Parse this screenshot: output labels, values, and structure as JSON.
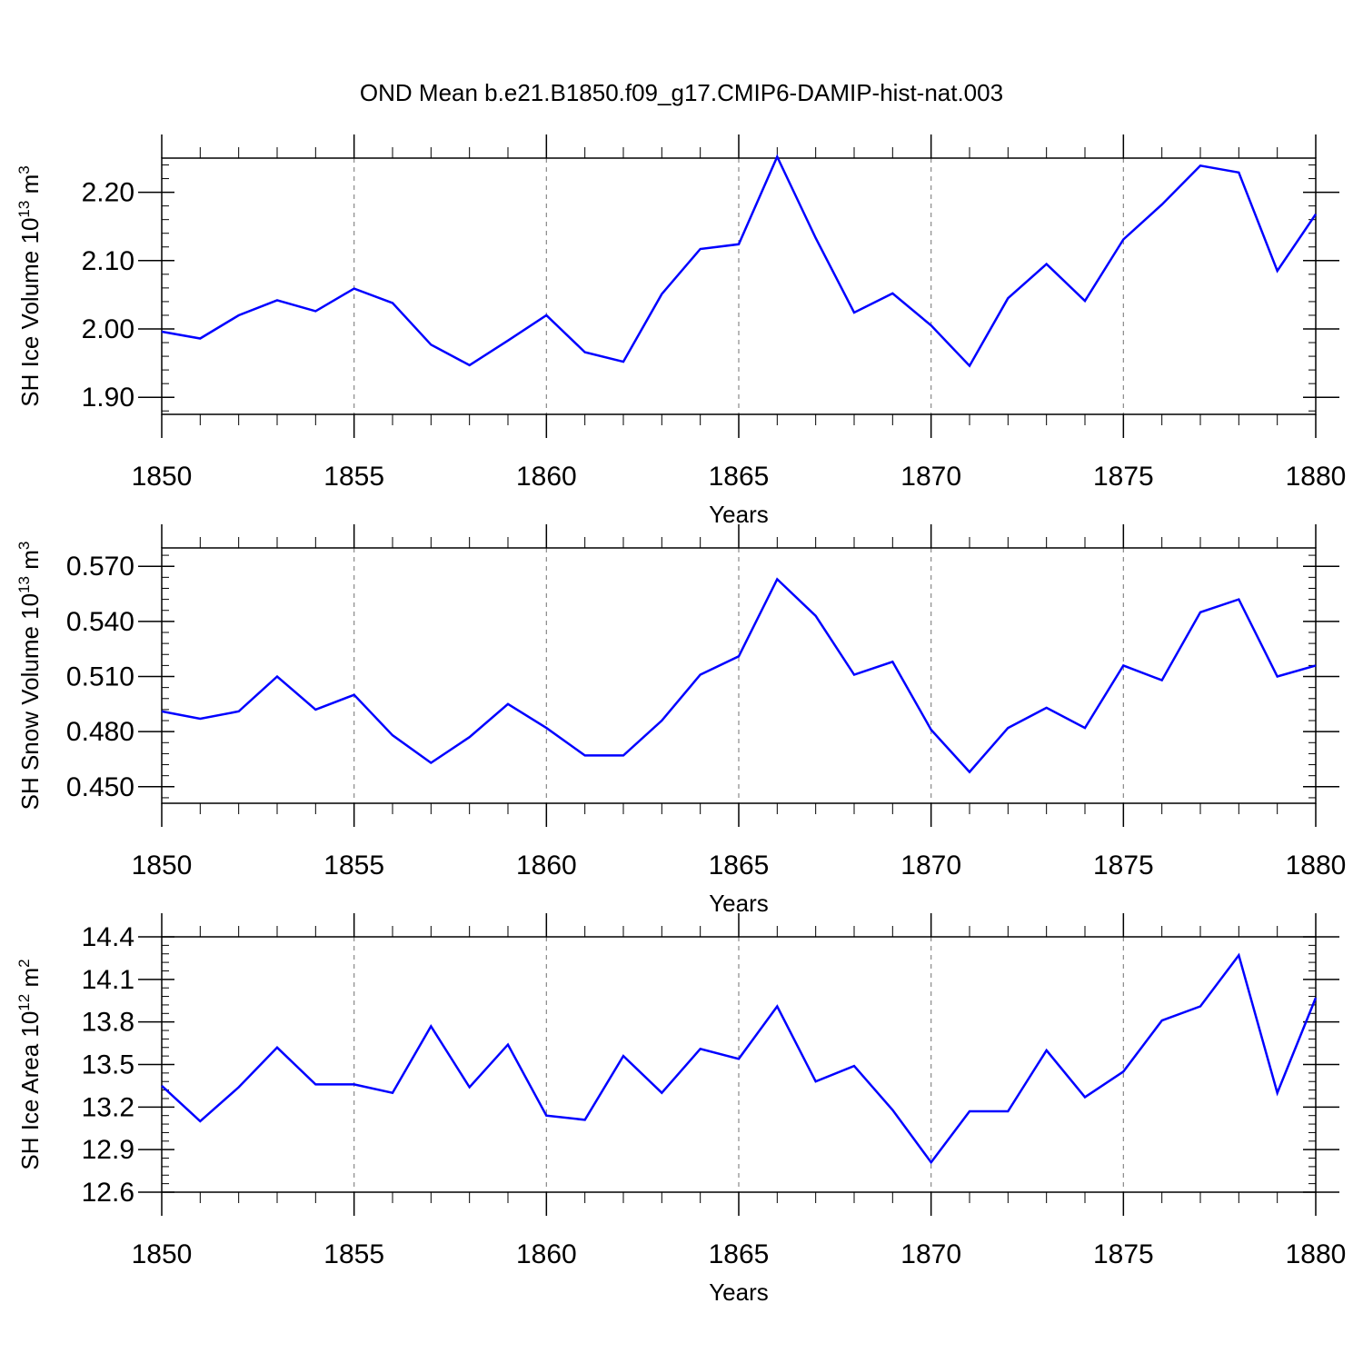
{
  "title": "OND Mean b.e21.B1850.f09_g17.CMIP6-DAMIP-hist-nat.003",
  "colors": {
    "line": "#0000ff",
    "axis": "#000000",
    "grid": "#888888",
    "background": "#ffffff"
  },
  "chart_data": [
    {
      "type": "line",
      "ylabel": {
        "base": "SH Ice Volume 10",
        "exp": "13",
        "unit": " m",
        "unit_exp": "3"
      },
      "xlabel": "Years",
      "xlim": [
        1850,
        1880
      ],
      "ylim": [
        1.875,
        2.25
      ],
      "y_ticks": [
        1.9,
        2.0,
        2.1,
        2.2
      ],
      "y_tick_labels": [
        "1.90",
        "2.00",
        "2.10",
        "2.20"
      ],
      "y_minor_step": 0.02,
      "x_ticks": [
        1850,
        1855,
        1860,
        1865,
        1870,
        1875,
        1880
      ],
      "x_tick_labels": [
        "1850",
        "1855",
        "1860",
        "1865",
        "1870",
        "1875",
        "1880"
      ],
      "grid": "vertical dashed at major x ticks",
      "series": [
        {
          "x": [
            1850,
            1851,
            1852,
            1853,
            1854,
            1855,
            1856,
            1857,
            1858,
            1859,
            1860,
            1861,
            1862,
            1863,
            1864,
            1865,
            1866,
            1867,
            1868,
            1869,
            1870,
            1871,
            1872,
            1873,
            1874,
            1875,
            1876,
            1877,
            1878,
            1879,
            1880
          ],
          "values": [
            1.996,
            1.986,
            2.02,
            2.042,
            2.026,
            2.059,
            2.038,
            1.977,
            1.947,
            1.983,
            2.02,
            1.966,
            1.952,
            2.051,
            2.117,
            2.124,
            2.252,
            2.133,
            2.024,
            2.052,
            2.005,
            1.946,
            2.045,
            2.095,
            2.041,
            2.131,
            2.182,
            2.239,
            2.229,
            2.085,
            2.168
          ]
        }
      ]
    },
    {
      "type": "line",
      "ylabel": {
        "base": "SH Snow Volume 10",
        "exp": "13",
        "unit": " m",
        "unit_exp": "3"
      },
      "xlabel": "Years",
      "xlim": [
        1850,
        1880
      ],
      "ylim": [
        0.441,
        0.58
      ],
      "y_ticks": [
        0.45,
        0.48,
        0.51,
        0.54,
        0.57
      ],
      "y_tick_labels": [
        "0.450",
        "0.480",
        "0.510",
        "0.540",
        "0.570"
      ],
      "y_minor_step": 0.006,
      "x_ticks": [
        1850,
        1855,
        1860,
        1865,
        1870,
        1875,
        1880
      ],
      "x_tick_labels": [
        "1850",
        "1855",
        "1860",
        "1865",
        "1870",
        "1875",
        "1880"
      ],
      "grid": "vertical dashed at major x ticks",
      "series": [
        {
          "x": [
            1850,
            1851,
            1852,
            1853,
            1854,
            1855,
            1856,
            1857,
            1858,
            1859,
            1860,
            1861,
            1862,
            1863,
            1864,
            1865,
            1866,
            1867,
            1868,
            1869,
            1870,
            1871,
            1872,
            1873,
            1874,
            1875,
            1876,
            1877,
            1878,
            1879,
            1880
          ],
          "values": [
            0.491,
            0.487,
            0.491,
            0.51,
            0.492,
            0.5,
            0.478,
            0.463,
            0.477,
            0.495,
            0.482,
            0.467,
            0.467,
            0.486,
            0.511,
            0.521,
            0.563,
            0.543,
            0.511,
            0.518,
            0.481,
            0.458,
            0.482,
            0.493,
            0.482,
            0.516,
            0.508,
            0.545,
            0.552,
            0.51,
            0.516
          ]
        }
      ]
    },
    {
      "type": "line",
      "ylabel": {
        "base": "SH Ice Area 10",
        "exp": "12",
        "unit": " m",
        "unit_exp": "2"
      },
      "xlabel": "Years",
      "xlim": [
        1850,
        1880
      ],
      "ylim": [
        12.6,
        14.4
      ],
      "y_ticks": [
        12.6,
        12.9,
        13.2,
        13.5,
        13.8,
        14.1,
        14.4
      ],
      "y_tick_labels": [
        "12.6",
        "12.9",
        "13.2",
        "13.5",
        "13.8",
        "14.1",
        "14.4"
      ],
      "y_minor_step": 0.06,
      "x_ticks": [
        1850,
        1855,
        1860,
        1865,
        1870,
        1875,
        1880
      ],
      "x_tick_labels": [
        "1850",
        "1855",
        "1860",
        "1865",
        "1870",
        "1875",
        "1880"
      ],
      "grid": "vertical dashed at major x ticks",
      "series": [
        {
          "x": [
            1850,
            1851,
            1852,
            1853,
            1854,
            1855,
            1856,
            1857,
            1858,
            1859,
            1860,
            1861,
            1862,
            1863,
            1864,
            1865,
            1866,
            1867,
            1868,
            1869,
            1870,
            1871,
            1872,
            1873,
            1874,
            1875,
            1876,
            1877,
            1878,
            1879,
            1880
          ],
          "values": [
            13.35,
            13.1,
            13.34,
            13.62,
            13.36,
            13.36,
            13.3,
            13.77,
            13.34,
            13.64,
            13.14,
            13.11,
            13.56,
            13.3,
            13.61,
            13.54,
            13.91,
            13.38,
            13.49,
            13.18,
            12.81,
            13.17,
            13.17,
            13.6,
            13.27,
            13.45,
            13.81,
            13.91,
            14.27,
            13.3,
            13.97
          ]
        }
      ]
    }
  ]
}
